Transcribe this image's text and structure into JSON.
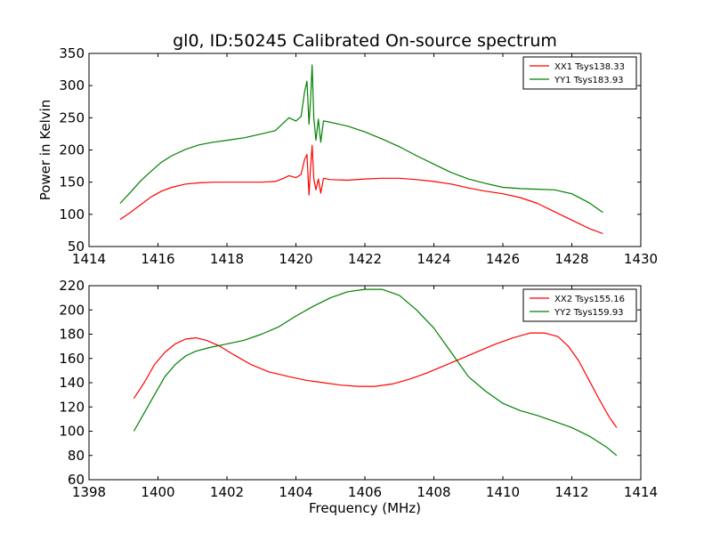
{
  "title": "gl0, ID:50245 Calibrated On-source spectrum",
  "chart_data": [
    {
      "type": "line",
      "title": "gl0, ID:50245 Calibrated On-source spectrum",
      "xlabel": "",
      "ylabel": "Power in Kelvin",
      "xlim": [
        1414,
        1430
      ],
      "ylim": [
        50,
        350
      ],
      "xticks": [
        "1414",
        "1416",
        "1418",
        "1420",
        "1422",
        "1424",
        "1426",
        "1428",
        "1430"
      ],
      "yticks": [
        "50",
        "100",
        "150",
        "200",
        "250",
        "300",
        "350"
      ],
      "legend_position": "top-right",
      "grid": false,
      "series": [
        {
          "name": "XX1 Tsys138.33",
          "color": "#ff0000",
          "x": [
            1414.9,
            1415.2,
            1415.5,
            1415.8,
            1416.1,
            1416.4,
            1416.8,
            1417.2,
            1417.6,
            1418.0,
            1418.5,
            1419.0,
            1419.4,
            1419.6,
            1419.8,
            1420.0,
            1420.15,
            1420.25,
            1420.32,
            1420.38,
            1420.42,
            1420.47,
            1420.52,
            1420.58,
            1420.65,
            1420.72,
            1420.8,
            1421.0,
            1421.5,
            1422.0,
            1422.5,
            1423.0,
            1423.5,
            1424.0,
            1424.5,
            1425.0,
            1425.5,
            1426.0,
            1426.5,
            1427.0,
            1427.5,
            1428.0,
            1428.5,
            1428.9
          ],
          "y": [
            92,
            103,
            115,
            127,
            136,
            142,
            147,
            149,
            150,
            150,
            150,
            150,
            151,
            155,
            160,
            157,
            162,
            185,
            193,
            130,
            170,
            207,
            155,
            138,
            155,
            133,
            156,
            154,
            153,
            155,
            156,
            156,
            154,
            151,
            147,
            141,
            136,
            132,
            126,
            117,
            104,
            91,
            78,
            70
          ]
        },
        {
          "name": "YY1 Tsys183.93",
          "color": "#008000",
          "x": [
            1414.9,
            1415.2,
            1415.5,
            1415.8,
            1416.1,
            1416.4,
            1416.8,
            1417.2,
            1417.6,
            1418.0,
            1418.5,
            1419.0,
            1419.4,
            1419.6,
            1419.8,
            1420.0,
            1420.15,
            1420.25,
            1420.32,
            1420.38,
            1420.42,
            1420.47,
            1420.52,
            1420.58,
            1420.65,
            1420.72,
            1420.8,
            1421.0,
            1421.5,
            1422.0,
            1422.5,
            1423.0,
            1423.5,
            1424.0,
            1424.5,
            1425.0,
            1425.5,
            1426.0,
            1426.5,
            1427.0,
            1427.5,
            1428.0,
            1428.5,
            1428.9
          ],
          "y": [
            117,
            134,
            152,
            167,
            181,
            191,
            201,
            208,
            212,
            215,
            219,
            225,
            230,
            240,
            250,
            245,
            252,
            290,
            307,
            240,
            275,
            332,
            250,
            215,
            248,
            212,
            245,
            243,
            237,
            228,
            217,
            205,
            191,
            178,
            165,
            155,
            148,
            142,
            140,
            139,
            138,
            132,
            118,
            103
          ]
        }
      ]
    },
    {
      "type": "line",
      "title": "",
      "xlabel": "Frequency (MHz)",
      "ylabel": "",
      "xlim": [
        1398,
        1414
      ],
      "ylim": [
        60,
        220
      ],
      "xticks": [
        "1398",
        "1400",
        "1402",
        "1404",
        "1406",
        "1408",
        "1410",
        "1412",
        "1414"
      ],
      "yticks": [
        "60",
        "80",
        "100",
        "120",
        "140",
        "160",
        "180",
        "200",
        "220"
      ],
      "legend_position": "top-right",
      "grid": false,
      "series": [
        {
          "name": "XX2 Tsys155.16",
          "color": "#ff0000",
          "x": [
            1399.3,
            1399.6,
            1399.9,
            1400.2,
            1400.5,
            1400.8,
            1401.1,
            1401.4,
            1401.8,
            1402.2,
            1402.7,
            1403.2,
            1403.8,
            1404.3,
            1404.8,
            1405.3,
            1405.8,
            1406.3,
            1406.8,
            1407.3,
            1407.8,
            1408.3,
            1408.8,
            1409.3,
            1409.8,
            1410.3,
            1410.8,
            1411.2,
            1411.6,
            1411.9,
            1412.2,
            1412.5,
            1412.8,
            1413.1,
            1413.3
          ],
          "y": [
            127,
            140,
            155,
            165,
            172,
            176,
            177,
            175,
            170,
            163,
            155,
            149,
            145,
            142,
            140,
            138,
            137,
            137,
            139,
            143,
            148,
            154,
            160,
            166,
            172,
            177,
            181,
            181,
            178,
            170,
            158,
            142,
            126,
            111,
            103
          ]
        },
        {
          "name": "YY2 Tsys159.93",
          "color": "#008000",
          "x": [
            1399.3,
            1399.6,
            1399.9,
            1400.2,
            1400.5,
            1400.8,
            1401.1,
            1401.5,
            1402.0,
            1402.5,
            1403.0,
            1403.5,
            1404.0,
            1404.5,
            1405.0,
            1405.5,
            1406.0,
            1406.5,
            1407.0,
            1407.5,
            1408.0,
            1408.5,
            1409.0,
            1409.5,
            1410.0,
            1410.5,
            1411.0,
            1411.5,
            1412.0,
            1412.5,
            1413.0,
            1413.3
          ],
          "y": [
            100,
            115,
            130,
            145,
            155,
            162,
            166,
            169,
            172,
            175,
            180,
            186,
            195,
            203,
            210,
            215,
            217,
            217,
            212,
            200,
            185,
            165,
            145,
            133,
            123,
            117,
            113,
            108,
            103,
            96,
            87,
            80
          ]
        }
      ]
    }
  ]
}
